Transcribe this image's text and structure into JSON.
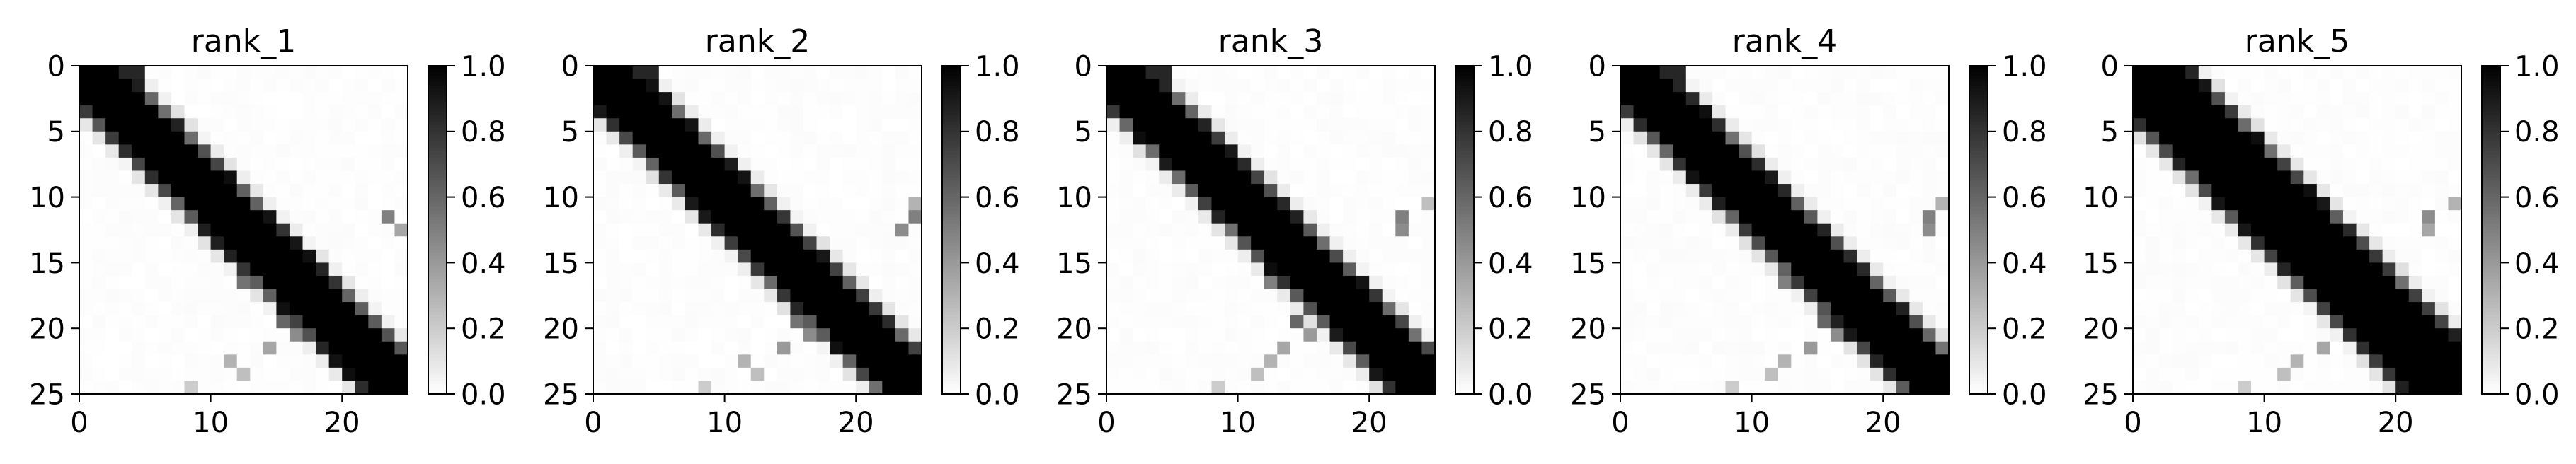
{
  "chart_data": [
    {
      "type": "heatmap",
      "title": "rank_1",
      "xlabel": "",
      "ylabel": "",
      "size": 25,
      "x_ticks": [
        0,
        10,
        20
      ],
      "y_ticks": [
        0,
        5,
        10,
        15,
        20,
        25
      ],
      "x_tick_labels": [
        "0",
        "10",
        "20"
      ],
      "y_tick_labels": [
        "0",
        "5",
        "10",
        "15",
        "20",
        "25"
      ],
      "colormap": "gray_r",
      "vmin": 0.0,
      "vmax": 1.0,
      "colorbar_ticks": [
        "0.0",
        "0.2",
        "0.4",
        "0.6",
        "0.8",
        "1.0"
      ],
      "band_half_width": 3.2,
      "offdiag_blocks": [
        [
          16,
          12,
          0.55
        ],
        [
          15,
          13,
          0.4
        ],
        [
          15,
          15,
          0.65
        ],
        [
          13,
          15,
          0.3
        ],
        [
          12,
          24,
          0.35
        ],
        [
          11,
          23,
          0.5
        ],
        [
          19,
          15,
          0.6
        ],
        [
          20,
          16,
          0.45
        ],
        [
          21,
          14,
          0.35
        ],
        [
          22,
          11,
          0.3
        ],
        [
          23,
          12,
          0.25
        ],
        [
          24,
          8,
          0.2
        ]
      ]
    },
    {
      "type": "heatmap",
      "title": "rank_2",
      "xlabel": "",
      "ylabel": "",
      "size": 25,
      "x_ticks": [
        0,
        10,
        20
      ],
      "y_ticks": [
        0,
        5,
        10,
        15,
        20,
        25
      ],
      "x_tick_labels": [
        "0",
        "10",
        "20"
      ],
      "y_tick_labels": [
        "0",
        "5",
        "10",
        "15",
        "20",
        "25"
      ],
      "colormap": "gray_r",
      "vmin": 0.0,
      "vmax": 1.0,
      "colorbar_ticks": [
        "0.0",
        "0.2",
        "0.4",
        "0.6",
        "0.8",
        "1.0"
      ],
      "band_half_width": 3.4,
      "offdiag_blocks": [
        [
          16,
          13,
          0.5
        ],
        [
          15,
          15,
          0.6
        ],
        [
          15,
          16,
          0.4
        ],
        [
          12,
          23,
          0.45
        ],
        [
          11,
          24,
          0.5
        ],
        [
          10,
          24,
          0.3
        ],
        [
          19,
          15,
          0.55
        ],
        [
          20,
          16,
          0.45
        ],
        [
          21,
          14,
          0.4
        ],
        [
          22,
          11,
          0.3
        ],
        [
          23,
          12,
          0.25
        ],
        [
          24,
          8,
          0.2
        ]
      ]
    },
    {
      "type": "heatmap",
      "title": "rank_3",
      "xlabel": "",
      "ylabel": "",
      "size": 25,
      "x_ticks": [
        0,
        10,
        20
      ],
      "y_ticks": [
        0,
        5,
        10,
        15,
        20,
        25
      ],
      "x_tick_labels": [
        "0",
        "10",
        "20"
      ],
      "y_tick_labels": [
        "0",
        "5",
        "10",
        "15",
        "20",
        "25"
      ],
      "colormap": "gray_r",
      "vmin": 0.0,
      "vmax": 1.0,
      "colorbar_ticks": [
        "0.0",
        "0.2",
        "0.4",
        "0.6",
        "0.8",
        "1.0"
      ],
      "band_half_width": 2.9,
      "offdiag_blocks": [
        [
          16,
          12,
          0.5
        ],
        [
          15,
          14,
          0.55
        ],
        [
          14,
          15,
          0.4
        ],
        [
          12,
          22,
          0.45
        ],
        [
          11,
          22,
          0.5
        ],
        [
          10,
          24,
          0.25
        ],
        [
          19,
          14,
          0.6
        ],
        [
          20,
          15,
          0.4
        ],
        [
          21,
          13,
          0.35
        ],
        [
          22,
          12,
          0.3
        ],
        [
          23,
          11,
          0.25
        ],
        [
          24,
          8,
          0.2
        ]
      ]
    },
    {
      "type": "heatmap",
      "title": "rank_4",
      "xlabel": "",
      "ylabel": "",
      "size": 25,
      "x_ticks": [
        0,
        10,
        20
      ],
      "y_ticks": [
        0,
        5,
        10,
        15,
        20,
        25
      ],
      "x_tick_labels": [
        "0",
        "10",
        "20"
      ],
      "y_tick_labels": [
        "0",
        "5",
        "10",
        "15",
        "20",
        "25"
      ],
      "colormap": "gray_r",
      "vmin": 0.0,
      "vmax": 1.0,
      "colorbar_ticks": [
        "0.0",
        "0.2",
        "0.4",
        "0.6",
        "0.8",
        "1.0"
      ],
      "band_half_width": 3.3,
      "offdiag_blocks": [
        [
          16,
          12,
          0.5
        ],
        [
          15,
          14,
          0.6
        ],
        [
          14,
          16,
          0.35
        ],
        [
          12,
          23,
          0.45
        ],
        [
          11,
          23,
          0.5
        ],
        [
          10,
          24,
          0.3
        ],
        [
          19,
          15,
          0.6
        ],
        [
          20,
          16,
          0.45
        ],
        [
          21,
          14,
          0.4
        ],
        [
          22,
          12,
          0.3
        ],
        [
          23,
          11,
          0.25
        ],
        [
          24,
          8,
          0.2
        ]
      ]
    },
    {
      "type": "heatmap",
      "title": "rank_5",
      "xlabel": "",
      "ylabel": "",
      "size": 25,
      "x_ticks": [
        0,
        10,
        20
      ],
      "y_ticks": [
        0,
        5,
        10,
        15,
        20,
        25
      ],
      "x_tick_labels": [
        "0",
        "10",
        "20"
      ],
      "y_tick_labels": [
        "0",
        "5",
        "10",
        "15",
        "20",
        "25"
      ],
      "colormap": "gray_r",
      "vmin": 0.0,
      "vmax": 1.0,
      "colorbar_ticks": [
        "0.0",
        "0.2",
        "0.4",
        "0.6",
        "0.8",
        "1.0"
      ],
      "band_half_width": 3.6,
      "offdiag_blocks": [
        [
          16,
          13,
          0.45
        ],
        [
          15,
          15,
          0.55
        ],
        [
          14,
          16,
          0.35
        ],
        [
          12,
          22,
          0.35
        ],
        [
          11,
          22,
          0.45
        ],
        [
          10,
          24,
          0.3
        ],
        [
          19,
          15,
          0.5
        ],
        [
          20,
          16,
          0.4
        ],
        [
          21,
          14,
          0.35
        ],
        [
          22,
          12,
          0.3
        ],
        [
          23,
          11,
          0.25
        ],
        [
          24,
          8,
          0.2
        ]
      ]
    }
  ]
}
